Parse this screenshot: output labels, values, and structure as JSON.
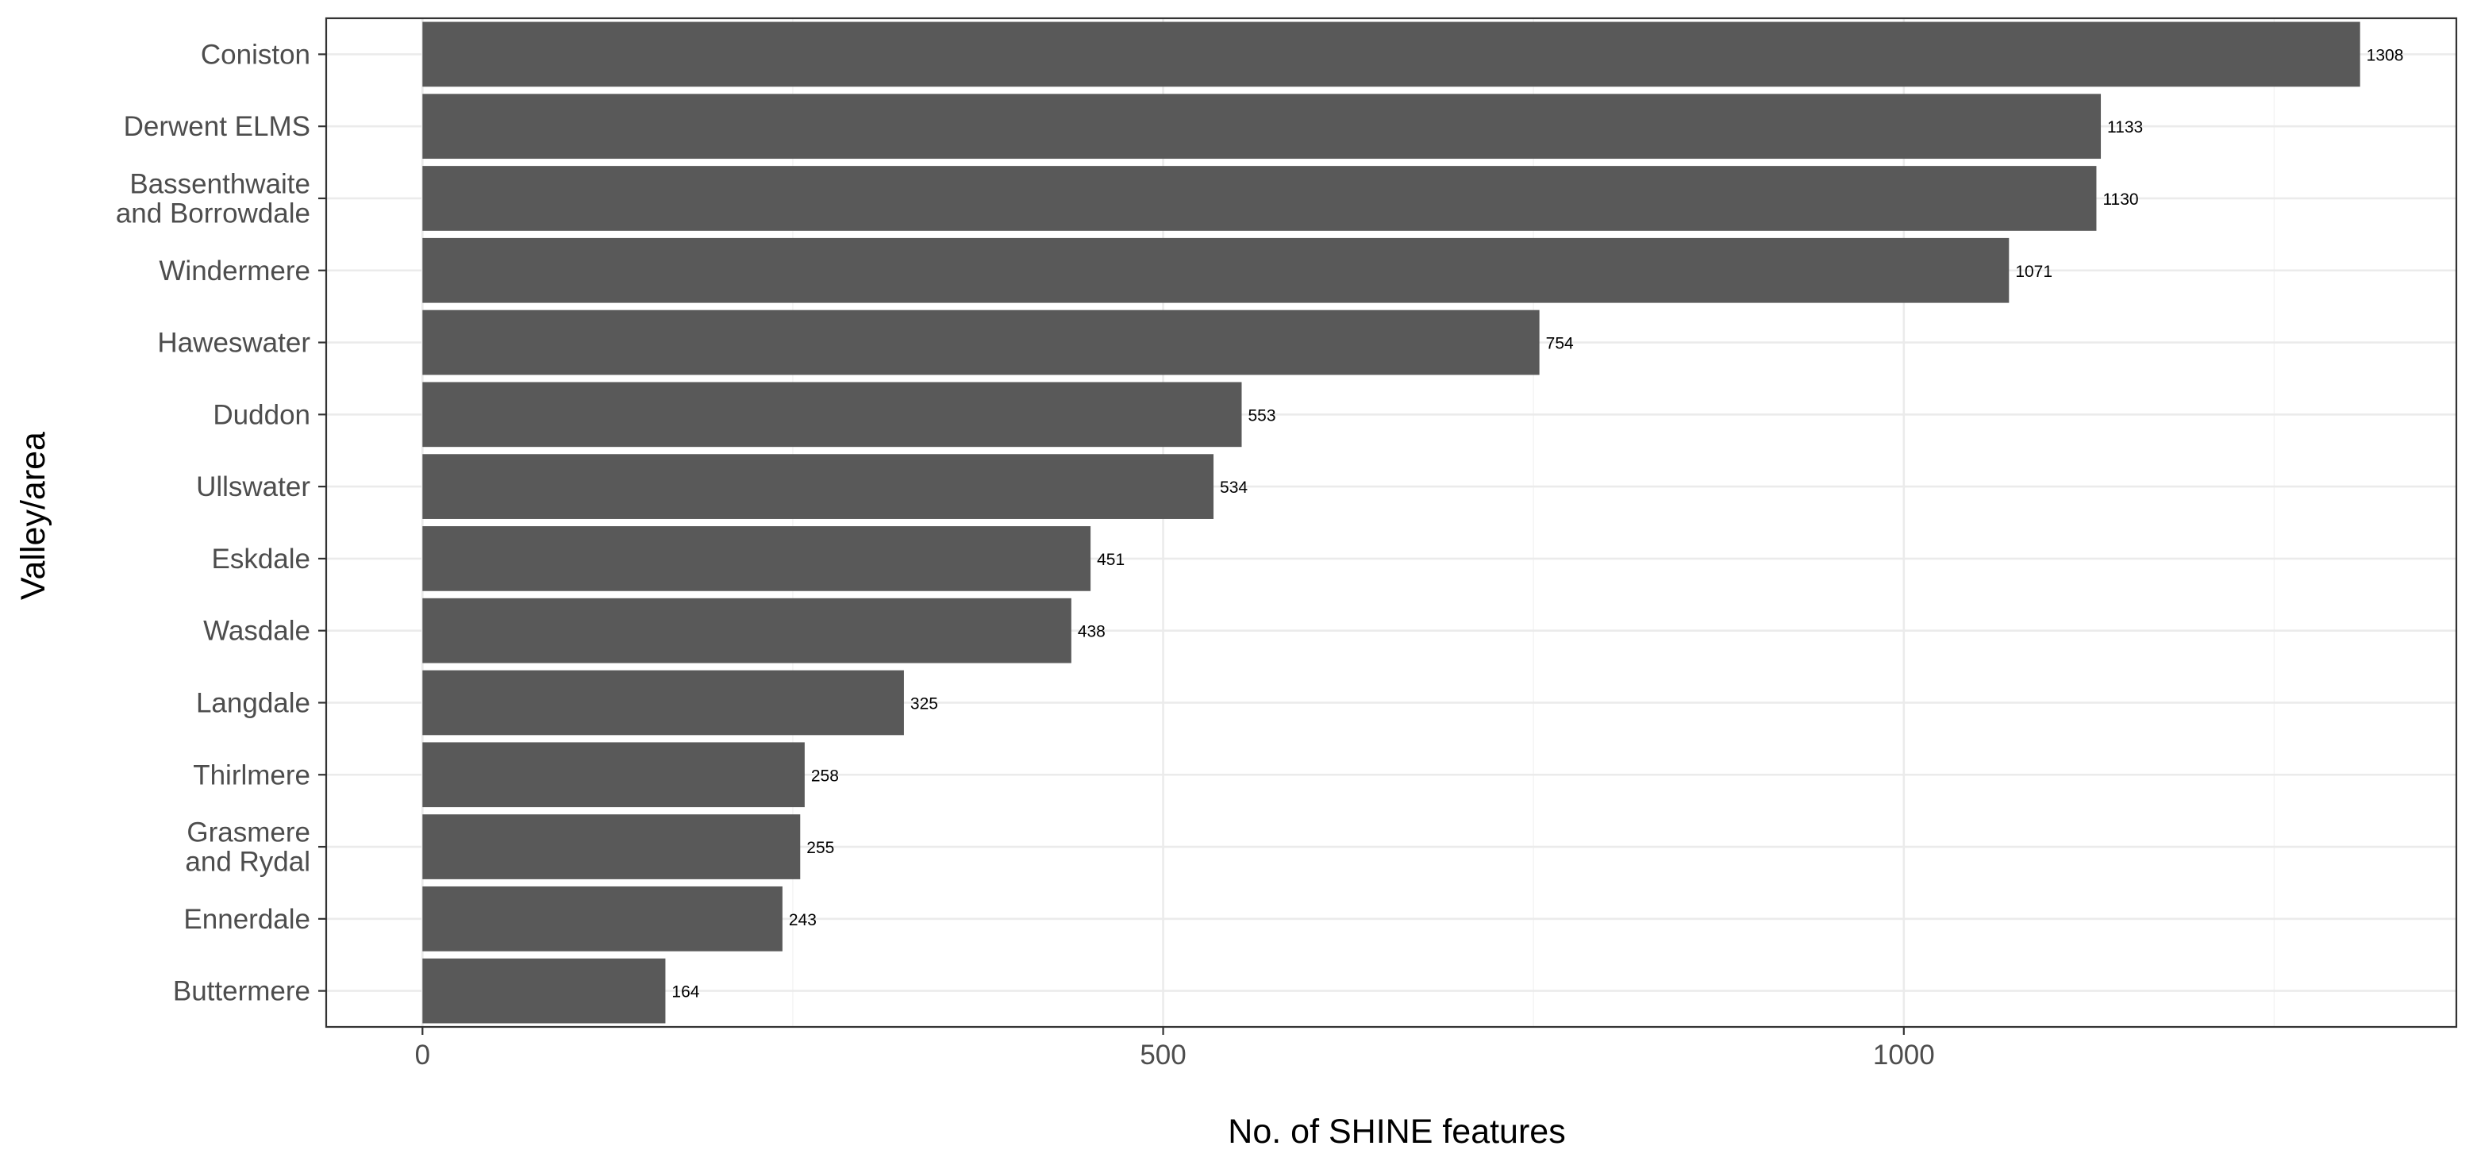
{
  "chart_data": {
    "type": "bar",
    "orientation": "horizontal",
    "categories": [
      "Coniston",
      "Derwent ELMS",
      "Bassenthwaite\nand Borrowdale",
      "Windermere",
      "Haweswater",
      "Duddon",
      "Ullswater",
      "Eskdale",
      "Wasdale",
      "Langdale",
      "Thirlmere",
      "Grasmere\nand Rydal",
      "Ennerdale",
      "Buttermere"
    ],
    "values": [
      1308,
      1133,
      1130,
      1071,
      754,
      553,
      534,
      451,
      438,
      325,
      258,
      255,
      243,
      164
    ],
    "value_labels": [
      "1308",
      "1133",
      "1130",
      "1071",
      "754",
      "553",
      "534",
      "451",
      "438",
      "325",
      "258",
      "255",
      "243",
      "164"
    ],
    "xlabel": "No. of SHINE features",
    "ylabel": "Valley/area",
    "xlim": [
      -65,
      1373
    ],
    "xticks": [
      0,
      500,
      1000
    ],
    "xtick_labels": [
      "0",
      "500",
      "1000"
    ],
    "x_minor_grid": [
      250,
      750,
      1250
    ],
    "grid": true,
    "legend": "none",
    "colors": {
      "bar": "#595959",
      "grid": "#ebebeb",
      "panel_border": "#333333"
    }
  }
}
